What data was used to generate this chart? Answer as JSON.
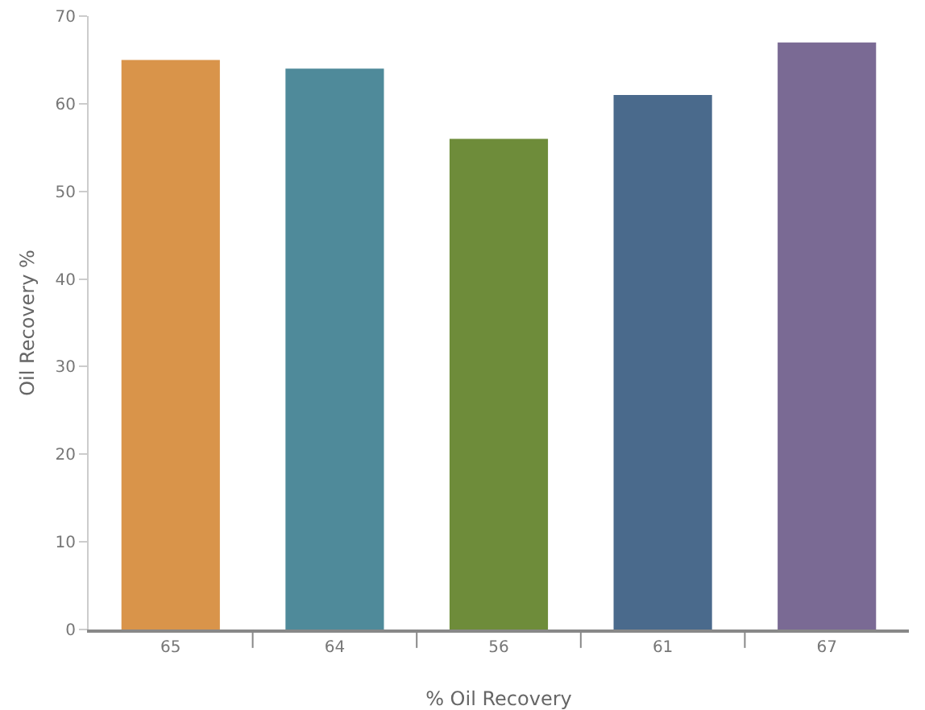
{
  "chart_data": {
    "type": "bar",
    "xlabel": "% Oil Recovery",
    "ylabel": "Oil Recovery %",
    "categories": [
      "65",
      "64",
      "56",
      "61",
      "67"
    ],
    "values": [
      65,
      64,
      56,
      61,
      67
    ],
    "colors": [
      "#d9944a",
      "#4f8a9a",
      "#6e8c3a",
      "#4a6a8c",
      "#7a6a94"
    ],
    "ylim": [
      0,
      70
    ],
    "yticks": [
      0,
      10,
      20,
      30,
      40,
      50,
      60,
      70
    ],
    "grid": false
  }
}
